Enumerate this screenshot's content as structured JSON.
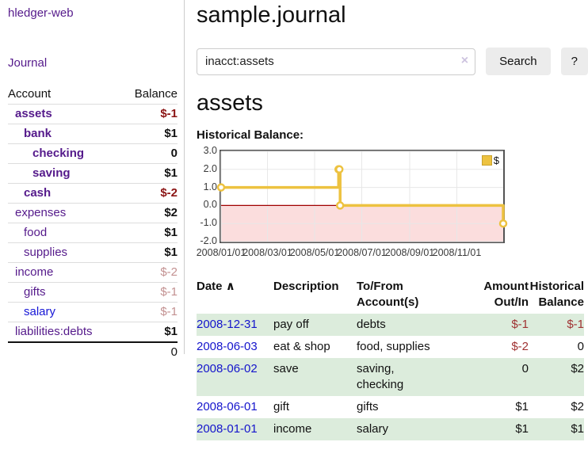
{
  "app": {
    "brand": "hledger-web"
  },
  "colors": {
    "link_purple": "#551a8b",
    "link_blue": "#1616d6",
    "date_link_blue": "#1414cc",
    "negative_strong_red": "#8b1414",
    "negative_light_red": "#c39191",
    "table_negative_red": "#a03333",
    "row_highlight_green": "#dcecdc",
    "series_gold": "#edc240",
    "negative_region_pink": "#fbdddd",
    "zero_line_red": "#a00000",
    "button_gray": "#ececec"
  },
  "sidebar": {
    "journal_link": "Journal",
    "accounts_table": {
      "account_header": "Account",
      "balance_header": "Balance",
      "rows": [
        {
          "name": "assets",
          "indent": 1,
          "bold": true,
          "blue": false,
          "balance": "$-1",
          "balance_class": "strong-neg"
        },
        {
          "name": "bank",
          "indent": 2,
          "bold": true,
          "blue": false,
          "balance": "$1",
          "balance_class": ""
        },
        {
          "name": "checking",
          "indent": 3,
          "bold": true,
          "blue": false,
          "balance": "0",
          "balance_class": ""
        },
        {
          "name": "saving",
          "indent": 3,
          "bold": true,
          "blue": false,
          "balance": "$1",
          "balance_class": ""
        },
        {
          "name": "cash",
          "indent": 2,
          "bold": true,
          "blue": false,
          "balance": "$-2",
          "balance_class": "strong-neg"
        },
        {
          "name": "expenses",
          "indent": 1,
          "bold": false,
          "blue": false,
          "balance": "$2",
          "balance_class": ""
        },
        {
          "name": "food",
          "indent": 2,
          "bold": false,
          "blue": false,
          "balance": "$1",
          "balance_class": ""
        },
        {
          "name": "supplies",
          "indent": 2,
          "bold": false,
          "blue": false,
          "balance": "$1",
          "balance_class": ""
        },
        {
          "name": "income",
          "indent": 1,
          "bold": false,
          "blue": false,
          "balance": "$-2",
          "balance_class": "light-neg"
        },
        {
          "name": "gifts",
          "indent": 2,
          "bold": false,
          "blue": false,
          "balance": "$-1",
          "balance_class": "light-neg"
        },
        {
          "name": "salary",
          "indent": 2,
          "bold": false,
          "blue": true,
          "balance": "$-1",
          "balance_class": "light-neg"
        },
        {
          "name": "liabilities:debts",
          "indent": 1,
          "bold": false,
          "blue": false,
          "balance": "$1",
          "balance_class": ""
        }
      ],
      "total": "0"
    }
  },
  "main": {
    "title": "sample.journal",
    "search": {
      "value": "inacct:assets",
      "clear_icon": "×",
      "button_label": "Search",
      "help_label": "?"
    },
    "account_heading": "assets",
    "chart_label": "Historical Balance:"
  },
  "chart_data": {
    "type": "line",
    "step": true,
    "title": "Historical Balance",
    "legend_label": "$",
    "legend_position": "top-right",
    "grid": true,
    "xlim": [
      "2008-01-01",
      "2008-12-31"
    ],
    "ylim": [
      -2,
      3
    ],
    "x_ticks": [
      "2008/01/01",
      "2008/03/01",
      "2008/05/01",
      "2008/07/01",
      "2008/09/01",
      "2008/11/01"
    ],
    "y_ticks": [
      "3.0",
      "2.0",
      "1.0",
      "0.0",
      "-1.0",
      "-2.0"
    ],
    "series": [
      {
        "name": "$",
        "color": "#edc240",
        "points": [
          [
            "2008-01-01",
            1
          ],
          [
            "2008-06-01",
            2
          ],
          [
            "2008-06-02",
            2
          ],
          [
            "2008-06-03",
            0
          ],
          [
            "2008-12-31",
            -1
          ]
        ]
      }
    ],
    "colors": {
      "grid": "#e7e7e7",
      "negative_region": "#fbdddd",
      "zero_line": "#a00000",
      "frame": "#545454"
    }
  },
  "register_table": {
    "sort_indicator": "∧",
    "headers": [
      {
        "lines": [
          "Date"
        ],
        "align": "left",
        "sortable": true
      },
      {
        "lines": [
          "Description"
        ],
        "align": "left",
        "sortable": false
      },
      {
        "lines": [
          "To/From",
          "Account(s)"
        ],
        "align": "left",
        "sortable": false
      },
      {
        "lines": [
          "Amount",
          "Out/In"
        ],
        "align": "right",
        "sortable": false
      },
      {
        "lines": [
          "Historical",
          "Balance"
        ],
        "align": "right",
        "sortable": false
      }
    ],
    "rows": [
      {
        "date": "2008-12-31",
        "description": "pay off",
        "accounts": [
          "debts"
        ],
        "amount": {
          "text": "$-1",
          "neg": true
        },
        "balance": {
          "text": "$-1",
          "neg": true
        }
      },
      {
        "date": "2008-06-03",
        "description": "eat & shop",
        "accounts": [
          "food, supplies"
        ],
        "amount": {
          "text": "$-2",
          "neg": true
        },
        "balance": {
          "text": "0",
          "neg": false
        }
      },
      {
        "date": "2008-06-02",
        "description": "save",
        "accounts": [
          "saving,",
          "checking"
        ],
        "amount": {
          "text": "0",
          "neg": false
        },
        "balance": {
          "text": "$2",
          "neg": false
        }
      },
      {
        "date": "2008-06-01",
        "description": "gift",
        "accounts": [
          "gifts"
        ],
        "amount": {
          "text": "$1",
          "neg": false
        },
        "balance": {
          "text": "$2",
          "neg": false
        }
      },
      {
        "date": "2008-01-01",
        "description": "income",
        "accounts": [
          "salary"
        ],
        "amount": {
          "text": "$1",
          "neg": false
        },
        "balance": {
          "text": "$1",
          "neg": false
        }
      }
    ]
  }
}
